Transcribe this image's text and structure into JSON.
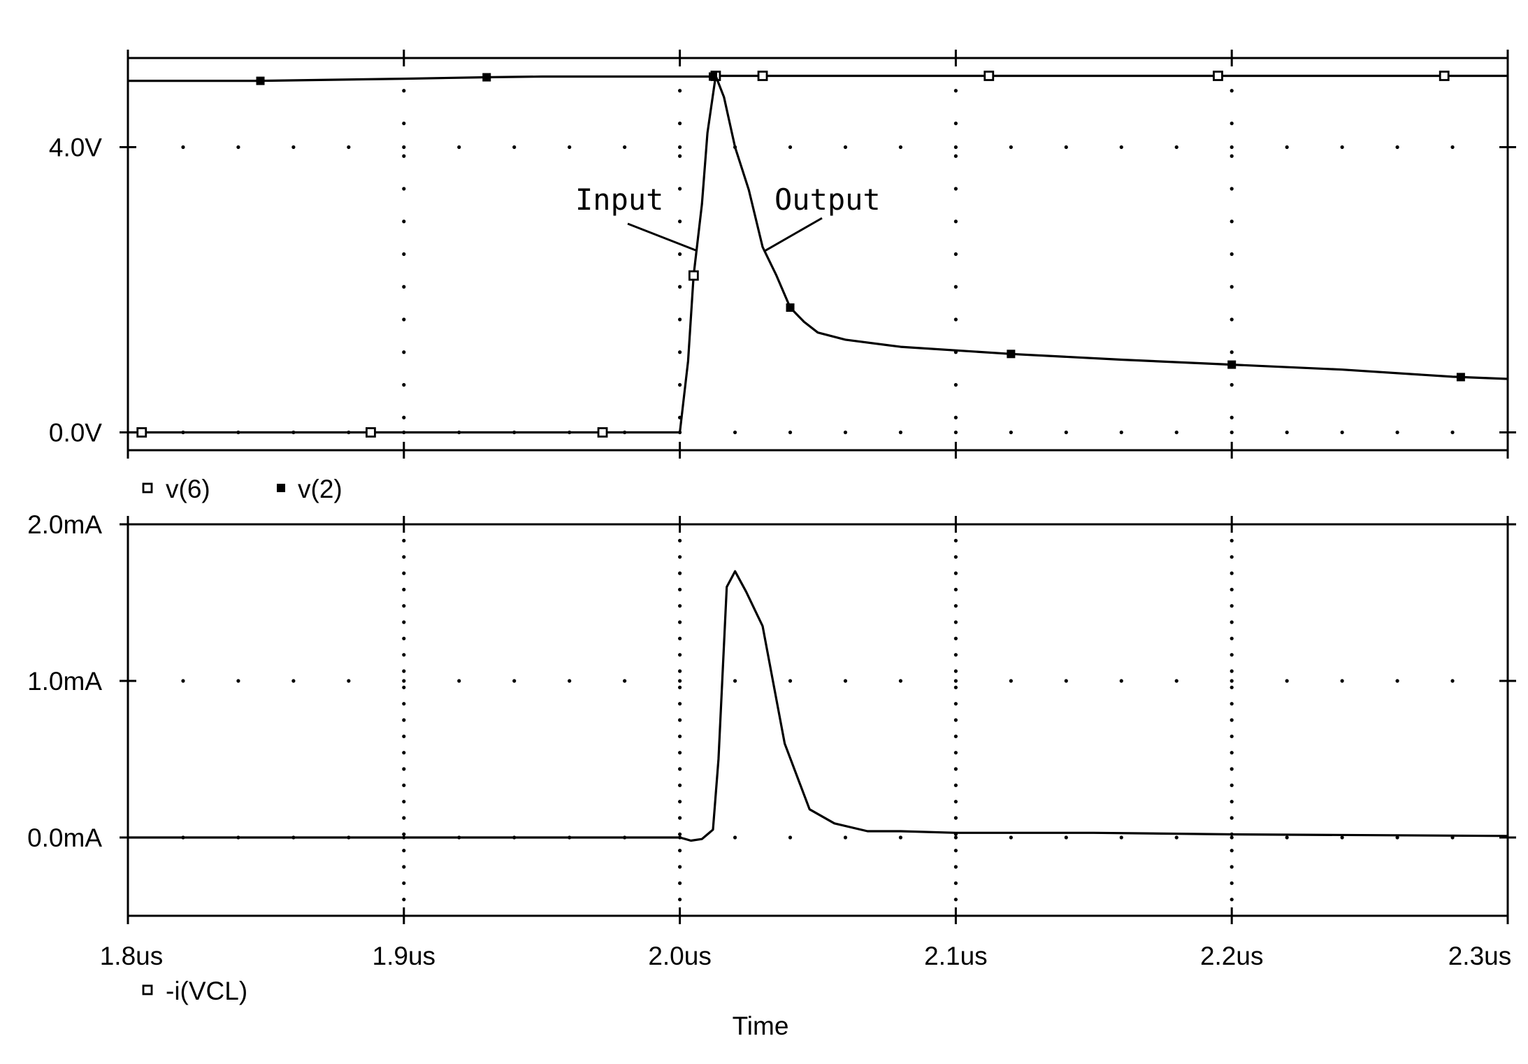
{
  "chart_data": [
    {
      "type": "line",
      "x_unit": "us",
      "xlim": [
        1.8,
        2.3
      ],
      "ylim": [
        -0.25,
        5.25
      ],
      "yticks": [
        {
          "value": 0.0,
          "label": "0.0V"
        },
        {
          "value": 4.0,
          "label": "4.0V"
        }
      ],
      "grid": "dotted",
      "legend_position": "bottom-left",
      "series": [
        {
          "name": "v(6)",
          "marker": "open-square",
          "x": [
            1.8,
            1.805,
            1.845,
            1.888,
            1.93,
            1.972,
            2.0,
            2.003,
            2.005,
            2.008,
            2.01,
            2.013,
            2.03,
            2.1,
            2.2,
            2.3
          ],
          "y": [
            0.0,
            0.0,
            0.0,
            0.0,
            0.0,
            0.0,
            0.0,
            1.0,
            2.2,
            3.2,
            4.2,
            5.0,
            5.0,
            5.0,
            5.0,
            5.0
          ],
          "marker_x": [
            1.805,
            1.888,
            1.972,
            2.005,
            2.013,
            2.03,
            2.112,
            2.195,
            2.277
          ]
        },
        {
          "name": "v(2)",
          "marker": "filled-square",
          "x": [
            1.8,
            1.848,
            1.9,
            1.93,
            1.95,
            2.0,
            2.012,
            2.013,
            2.016,
            2.02,
            2.025,
            2.03,
            2.035,
            2.04,
            2.045,
            2.05,
            2.06,
            2.08,
            2.12,
            2.16,
            2.2,
            2.24,
            2.28,
            2.3
          ],
          "y": [
            4.93,
            4.93,
            4.96,
            4.98,
            4.99,
            4.99,
            4.99,
            5.0,
            4.7,
            4.0,
            3.4,
            2.6,
            2.2,
            1.75,
            1.55,
            1.4,
            1.3,
            1.2,
            1.1,
            1.02,
            0.95,
            0.88,
            0.78,
            0.75
          ],
          "marker_x": [
            1.848,
            1.93,
            2.012,
            2.04,
            2.12,
            2.2,
            2.283
          ]
        }
      ],
      "annotations": [
        {
          "text": "Input",
          "target_x": 2.006,
          "target_y": 2.55
        },
        {
          "text": "Output",
          "target_x": 2.031,
          "target_y": 2.55
        }
      ]
    },
    {
      "type": "line",
      "x_unit": "us",
      "xlim": [
        1.8,
        2.3
      ],
      "ylim": [
        -0.5,
        2.0
      ],
      "yticks": [
        {
          "value": 0.0,
          "label": "0.0mA"
        },
        {
          "value": 1.0,
          "label": "1.0mA"
        },
        {
          "value": 2.0,
          "label": "2.0mA"
        }
      ],
      "xticks": [
        {
          "value": 1.8,
          "label": "1.8us"
        },
        {
          "value": 1.9,
          "label": "1.9us"
        },
        {
          "value": 2.0,
          "label": "2.0us"
        },
        {
          "value": 2.1,
          "label": "2.1us"
        },
        {
          "value": 2.2,
          "label": "2.2us"
        },
        {
          "value": 2.3,
          "label": "2.3us"
        }
      ],
      "xlabel": "Time",
      "grid": "dotted",
      "legend_position": "bottom-left",
      "series": [
        {
          "name": "-i(VCL)",
          "marker": "open-square",
          "x": [
            1.8,
            1.9,
            2.0,
            2.002,
            2.004,
            2.008,
            2.01,
            2.012,
            2.014,
            2.017,
            2.02,
            2.024,
            2.03,
            2.038,
            2.047,
            2.056,
            2.068,
            2.08,
            2.1,
            2.15,
            2.2,
            2.3
          ],
          "y": [
            0.0,
            0.0,
            0.0,
            -0.01,
            -0.02,
            -0.01,
            0.02,
            0.05,
            0.5,
            1.6,
            1.7,
            1.57,
            1.35,
            0.6,
            0.18,
            0.09,
            0.04,
            0.04,
            0.03,
            0.03,
            0.02,
            0.01
          ],
          "marker_x": []
        }
      ]
    }
  ]
}
